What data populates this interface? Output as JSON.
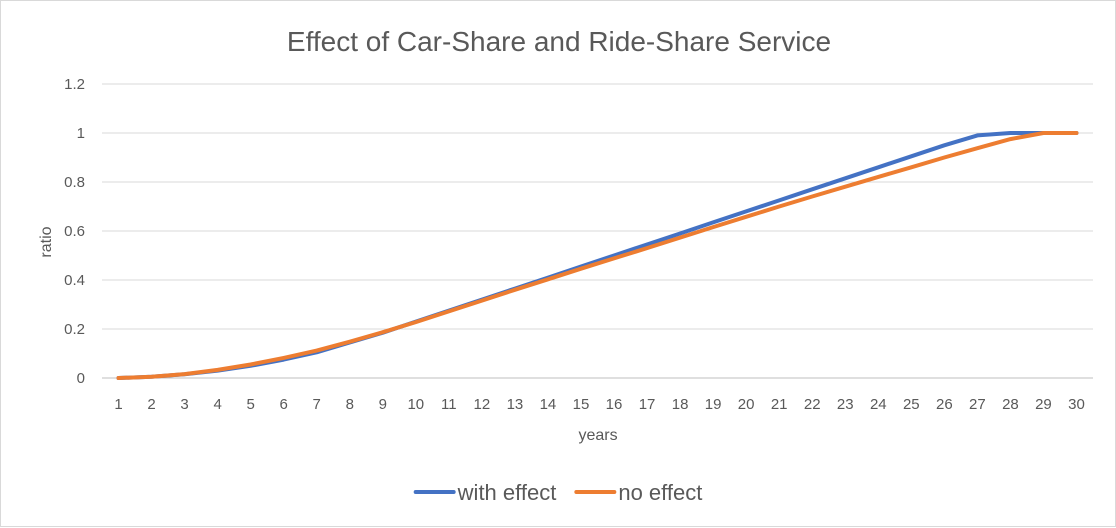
{
  "chart_data": {
    "type": "line",
    "title": "Effect of Car-Share and Ride-Share Service",
    "xlabel": "years",
    "ylabel": "ratio",
    "categories": [
      "1",
      "2",
      "3",
      "4",
      "5",
      "6",
      "7",
      "8",
      "9",
      "10",
      "11",
      "12",
      "13",
      "14",
      "15",
      "16",
      "17",
      "18",
      "19",
      "20",
      "21",
      "22",
      "23",
      "24",
      "25",
      "26",
      "27",
      "28",
      "29",
      "30"
    ],
    "ylim": [
      0,
      1.2
    ],
    "yticks": [
      "0",
      "0.2",
      "0.4",
      "0.6",
      "0.8",
      "1",
      "1.2"
    ],
    "grid": true,
    "legend_position": "bottom",
    "series": [
      {
        "name": "with effect",
        "color": "#4472C4",
        "values": [
          0,
          0.005,
          0.015,
          0.03,
          0.05,
          0.075,
          0.105,
          0.145,
          0.185,
          0.23,
          0.275,
          0.32,
          0.365,
          0.41,
          0.455,
          0.5,
          0.545,
          0.59,
          0.635,
          0.68,
          0.725,
          0.77,
          0.815,
          0.86,
          0.905,
          0.95,
          0.99,
          1.0,
          1.0,
          1.0
        ]
      },
      {
        "name": "no effect",
        "color": "#ED7D31",
        "values": [
          0,
          0.005,
          0.016,
          0.033,
          0.055,
          0.082,
          0.112,
          0.148,
          0.187,
          0.228,
          0.272,
          0.316,
          0.36,
          0.403,
          0.446,
          0.488,
          0.53,
          0.573,
          0.616,
          0.658,
          0.7,
          0.741,
          0.781,
          0.821,
          0.86,
          0.9,
          0.938,
          0.975,
          1.0,
          1.0
        ]
      }
    ]
  }
}
